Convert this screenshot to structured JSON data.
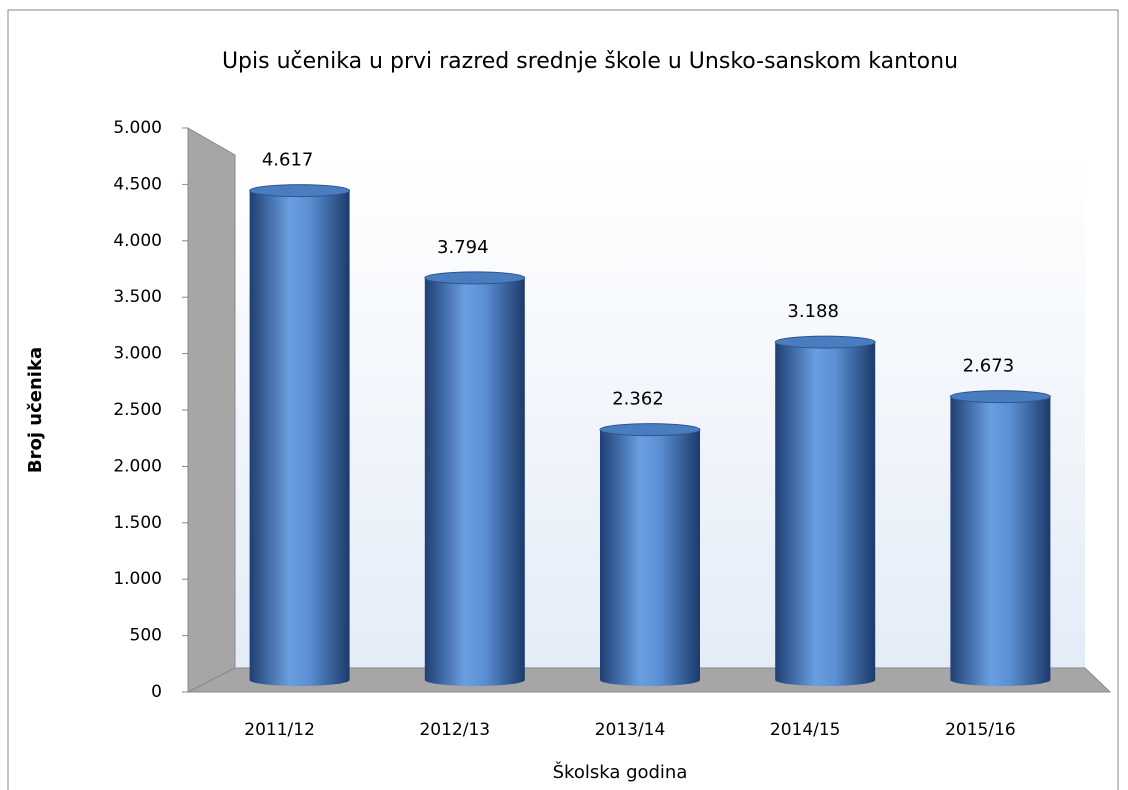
{
  "chart_data": {
    "type": "bar",
    "title": "Upis učenika u prvi razred srednje škole u Unsko-sanskom kantonu",
    "x_label": "Školska godina",
    "y_label": "Broj učenika",
    "categories": [
      "2011/12",
      "2012/13",
      "2013/14",
      "2014/15",
      "2015/16"
    ],
    "values": [
      4617,
      3794,
      2362,
      3188,
      2673
    ],
    "value_labels": [
      "4.617",
      "3.794",
      "2.362",
      "3.188",
      "2.673"
    ],
    "color": "#4f81bd",
    "ylim": [
      0,
      5000
    ],
    "yticks": [
      0,
      500,
      {
        "value": 1000,
        "label": "1.000"
      },
      {
        "value": 1500,
        "label": "1.500"
      },
      {
        "value": 2000,
        "label": "2.000"
      },
      {
        "value": 2500,
        "label": "2.500"
      },
      {
        "value": 3000,
        "label": "3.000"
      },
      {
        "value": 3500,
        "label": "3.500"
      },
      {
        "value": 4000,
        "label": "4.000"
      },
      {
        "value": 4500,
        "label": "4.500"
      },
      {
        "value": 5000,
        "label": "5.000"
      }
    ]
  }
}
